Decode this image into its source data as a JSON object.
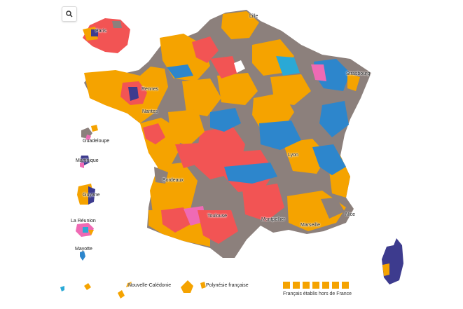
{
  "toolbar": {
    "search_icon": "search-icon"
  },
  "colors": {
    "orange": "#f5a300",
    "grey": "#8c807c",
    "red": "#f25454",
    "blue": "#2d86cc",
    "navy": "#3d3b8e",
    "pink": "#ef6ab4",
    "lightblue": "#2aa9d6"
  },
  "labels": {
    "paris": "Paris",
    "lille": "Lille",
    "strasbourg": "Strasbourg",
    "rennes": "Rennes",
    "nantes": "Nantes",
    "lyon": "Lyon",
    "bordeaux": "Bordeaux",
    "toulouse": "Toulouse",
    "montpellier": "Montpellier",
    "marseille": "Marseille",
    "nice": "Nice",
    "guadeloupe": "Guadeloupe",
    "martinique": "Martinique",
    "guyane": "Guyane",
    "reunion": "La Réunion",
    "mayotte": "Mayotte",
    "nouvelle_caledonie": "Nouvelle-Calédonie",
    "polynesie": "Polynésie française"
  },
  "legend": {
    "swatch_colors": [
      "#f5a300",
      "#f5a300",
      "#f5a300",
      "#f5a300",
      "#f5a300",
      "#f5a300",
      "#f5a300"
    ],
    "label": "Français établis hors de France"
  }
}
